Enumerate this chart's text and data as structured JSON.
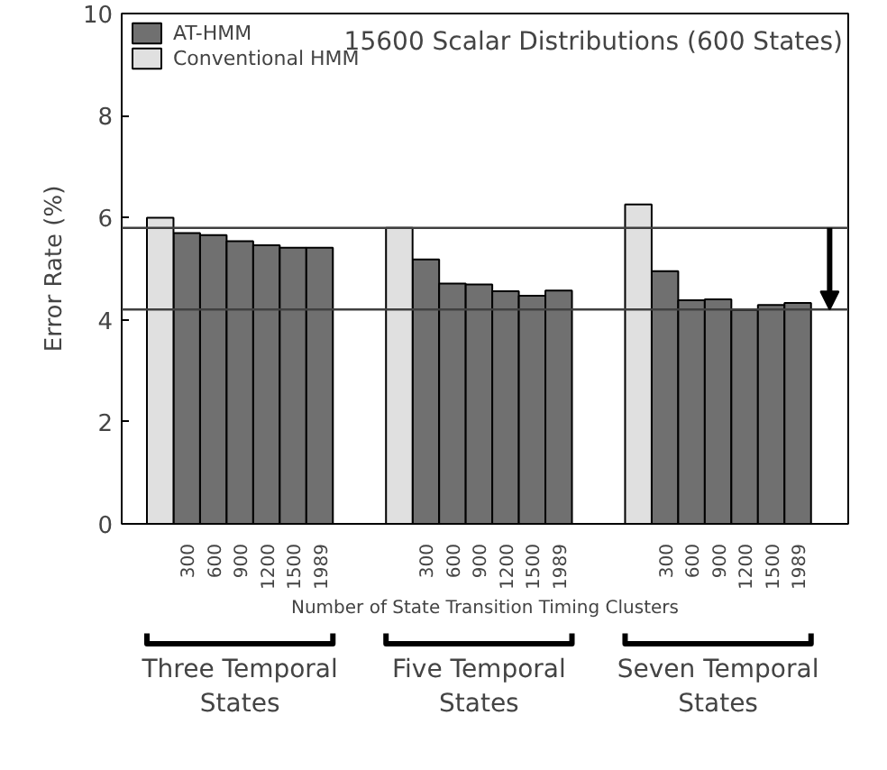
{
  "chart_data": {
    "type": "bar",
    "title": "15600 Scalar Distributions (600 States)",
    "xlabel": "Number of State Transition Timing Clusters",
    "ylabel": "Error Rate (%)",
    "categories": [
      null,
      "300",
      "600",
      "900",
      "1200",
      "1500",
      "1989",
      null,
      null,
      null,
      "300",
      "600",
      "900",
      "1200",
      "1500",
      "1989",
      null,
      null,
      null,
      "300",
      "600",
      "900",
      "1200",
      "1500",
      "1989"
    ],
    "series": [
      {
        "name": "AT-HMM",
        "color": "#707070",
        "values": [
          null,
          5.7,
          5.66,
          5.54,
          5.46,
          5.41,
          5.41,
          null,
          null,
          null,
          5.18,
          4.71,
          4.69,
          4.56,
          4.47,
          4.57,
          null,
          null,
          null,
          4.95,
          4.38,
          4.4,
          4.19,
          4.29,
          4.33
        ]
      },
      {
        "name": "Conventional HMM",
        "color": "#e0e0e0",
        "values": [
          6.0,
          null,
          null,
          null,
          null,
          null,
          null,
          null,
          null,
          5.8,
          null,
          null,
          null,
          null,
          null,
          null,
          null,
          null,
          6.26,
          null,
          null,
          null,
          null,
          null,
          null
        ]
      }
    ],
    "ylim": [
      0,
      10
    ],
    "yticks": [
      0,
      2,
      4,
      6,
      8,
      10
    ],
    "grid": false,
    "legend": "top left",
    "ref_lines": [
      {
        "axis": "y",
        "value": 5.8,
        "color": "#404040"
      },
      {
        "axis": "y",
        "value": 4.2,
        "color": "#404040"
      }
    ],
    "annotations": [
      "Three Temporal\nStates",
      "Five Temporal\nStates",
      "Seven Temporal\nStates"
    ]
  }
}
